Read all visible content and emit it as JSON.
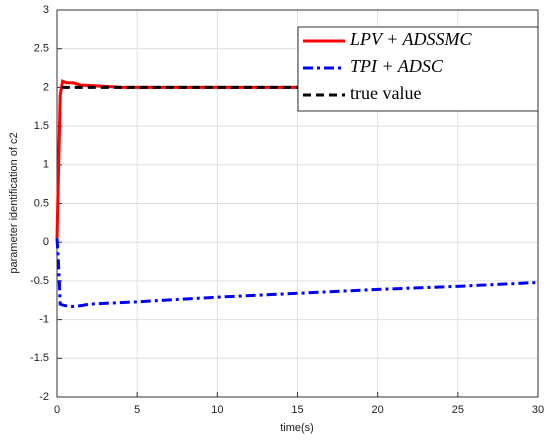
{
  "chart_data": {
    "type": "line",
    "xlabel": "time(s)",
    "ylabel": "parameter identification of c2",
    "xlim": [
      0,
      30
    ],
    "xticks": [
      0,
      5,
      10,
      15,
      20,
      25,
      30
    ],
    "ylim": [
      -2,
      3
    ],
    "yticks": [
      -2,
      -1.5,
      -1,
      -0.5,
      0,
      0.5,
      1,
      1.5,
      2,
      2.5,
      3
    ],
    "grid": true,
    "legend": "top-right",
    "series": [
      {
        "name": "LPV + ADSSMC",
        "color": "#ff0000",
        "style": "solid",
        "x": [
          0,
          0.2,
          0.35,
          0.6,
          1,
          1.5,
          2.5,
          4,
          10,
          20,
          30
        ],
        "values": [
          0.05,
          1.9,
          2.08,
          2.06,
          2.06,
          2.03,
          2.02,
          2.0,
          2.0,
          2.0,
          2.0
        ]
      },
      {
        "name": "TPI + ADSC",
        "color": "#0000ff",
        "style": "dashdot",
        "x": [
          0,
          0.1,
          0.2,
          0.5,
          1,
          1.5,
          2,
          5,
          10,
          15,
          20,
          25,
          30
        ],
        "values": [
          0.05,
          -0.3,
          -0.8,
          -0.82,
          -0.83,
          -0.82,
          -0.8,
          -0.77,
          -0.71,
          -0.66,
          -0.61,
          -0.57,
          -0.52
        ]
      },
      {
        "name": "true value",
        "color": "#000000",
        "style": "dashed",
        "x": [
          0.3,
          30
        ],
        "values": [
          2,
          2
        ]
      }
    ]
  }
}
